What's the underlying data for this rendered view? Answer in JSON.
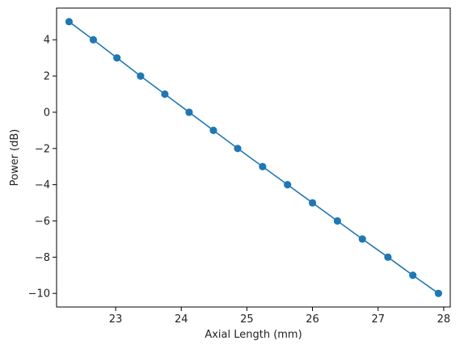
{
  "chart_data": {
    "type": "line",
    "title": "",
    "xlabel": "Axial Length (mm)",
    "ylabel": "Power (dB)",
    "xlim": [
      22.1,
      28.1
    ],
    "ylim": [
      -10.75,
      5.75
    ],
    "grid": false,
    "marker": "circle",
    "xticks": [
      {
        "value": 23,
        "label": "23"
      },
      {
        "value": 24,
        "label": "24"
      },
      {
        "value": 25,
        "label": "25"
      },
      {
        "value": 26,
        "label": "26"
      },
      {
        "value": 27,
        "label": "27"
      },
      {
        "value": 28,
        "label": "28"
      }
    ],
    "yticks": [
      {
        "value": 4,
        "label": "4"
      },
      {
        "value": 2,
        "label": "2"
      },
      {
        "value": 0,
        "label": "0"
      },
      {
        "value": -2,
        "label": "−2"
      },
      {
        "value": -4,
        "label": "−4"
      },
      {
        "value": -6,
        "label": "−6"
      },
      {
        "value": -8,
        "label": "−8"
      },
      {
        "value": -10,
        "label": "−10"
      }
    ],
    "series": [
      {
        "color": "#1f77b4",
        "points": [
          {
            "x": 22.29,
            "y": 5
          },
          {
            "x": 22.66,
            "y": 4
          },
          {
            "x": 23.02,
            "y": 3
          },
          {
            "x": 23.38,
            "y": 2
          },
          {
            "x": 23.75,
            "y": 1
          },
          {
            "x": 24.12,
            "y": 0
          },
          {
            "x": 24.49,
            "y": -1
          },
          {
            "x": 24.86,
            "y": -2
          },
          {
            "x": 25.24,
            "y": -3
          },
          {
            "x": 25.62,
            "y": -4
          },
          {
            "x": 26.0,
            "y": -5
          },
          {
            "x": 26.38,
            "y": -6
          },
          {
            "x": 26.76,
            "y": -7
          },
          {
            "x": 27.15,
            "y": -8
          },
          {
            "x": 27.53,
            "y": -9
          },
          {
            "x": 27.92,
            "y": -10
          }
        ]
      }
    ]
  }
}
